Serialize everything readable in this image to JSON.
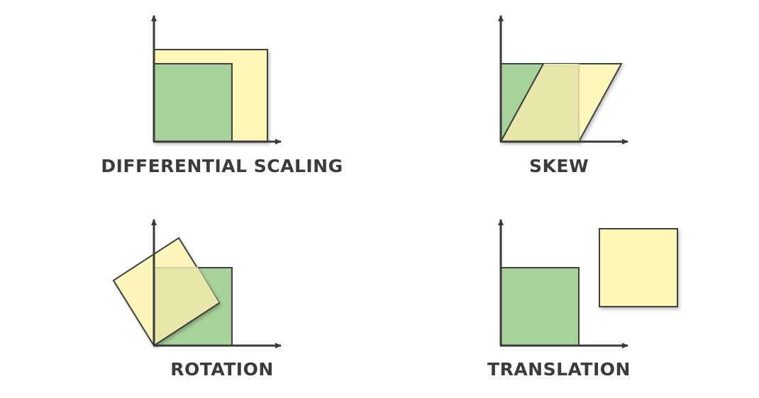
{
  "colors": {
    "background": "#ffffff",
    "axis": "#3a3a3a",
    "original_fill": "#a8d29b",
    "transformed_fill": "#fff7b8",
    "overlap_fill": "#e8e6a8",
    "shape_stroke": "#3f3f3f",
    "ghost_stroke": "#cfcfa8",
    "label": "#3b3b3b"
  },
  "panels": [
    {
      "id": "differential-scaling",
      "label": "DIFFERENTIAL SCALING"
    },
    {
      "id": "skew",
      "label": "SKEW"
    },
    {
      "id": "rotation",
      "label": "ROTATION"
    },
    {
      "id": "translation",
      "label": "TRANSLATION"
    }
  ]
}
